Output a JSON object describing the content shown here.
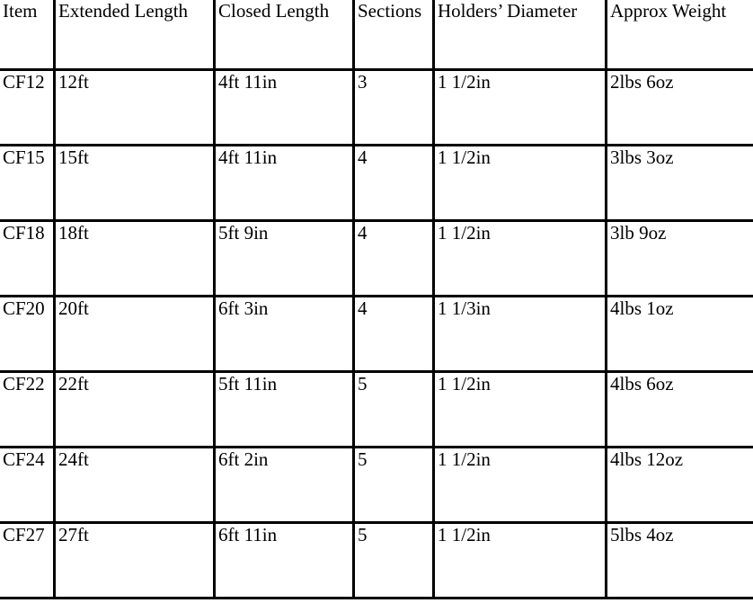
{
  "table": {
    "columns": [
      {
        "key": "item",
        "label": "Item"
      },
      {
        "key": "extended",
        "label": "Extended Length"
      },
      {
        "key": "closed",
        "label": "Closed Length"
      },
      {
        "key": "sections",
        "label": "Sections"
      },
      {
        "key": "diameter",
        "label": "Holders’ Diameter"
      },
      {
        "key": "weight",
        "label": "Approx Weight"
      }
    ],
    "rows": [
      [
        "CF12",
        "12ft",
        "4ft 11in",
        "3",
        "1 1/2in",
        "2lbs 6oz"
      ],
      [
        "CF15",
        "15ft",
        "4ft 11in",
        "4",
        "1 1/2in",
        "3lbs 3oz"
      ],
      [
        "CF18",
        "18ft",
        "5ft 9in",
        "4",
        "1 1/2in",
        "3lb 9oz"
      ],
      [
        "CF20",
        "20ft",
        "6ft 3in",
        "4",
        "1 1/3in",
        "4lbs 1oz"
      ],
      [
        "CF22",
        "22ft",
        "5ft 11in",
        "5",
        "1 1/2in",
        "4lbs 6oz"
      ],
      [
        "CF24",
        "24ft",
        "6ft 2in",
        "5",
        "1 1/2in",
        "4lbs 12oz"
      ],
      [
        "CF27",
        "27ft",
        "6ft 11in",
        "5",
        "1 1/2in",
        "5lbs 4oz"
      ]
    ],
    "colors": {
      "border": "#000000",
      "text": "#000000",
      "background": "#ffffff"
    }
  }
}
